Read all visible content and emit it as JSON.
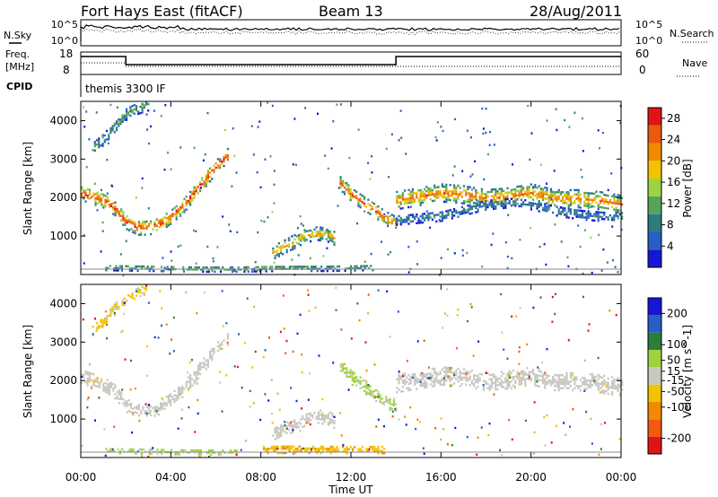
{
  "header": {
    "station": "Fort Hays East (fitACF)",
    "beam": "Beam 13",
    "date": "28/Aug/2011"
  },
  "status_panels": {
    "nsky_label": "N.Sky",
    "nsearch_label": "N.Search",
    "noise_ticks": [
      "10^5",
      "10^0"
    ],
    "freq_label_1": "Freq.",
    "freq_label_2": "[MHz]",
    "freq_ticks": [
      "18",
      "8"
    ],
    "nave_label": "Nave",
    "nave_ticks": [
      "60",
      "0"
    ],
    "cpid_label": "CPID",
    "cpid_text": "themis 3300 IF"
  },
  "colors": {
    "power": [
      "#1616d6",
      "#2a5ec7",
      "#2d7c7c",
      "#56a35a",
      "#9fd23f",
      "#f2c300",
      "#f08a00",
      "#e85a10",
      "#e01414"
    ],
    "velocity": [
      "#e01414",
      "#f05a10",
      "#f08a00",
      "#f2c300",
      "#c8c8c0",
      "#9fd23f",
      "#2d7c3a",
      "#2a5ec7",
      "#1616d6"
    ]
  },
  "chart_data": [
    {
      "type": "heatmap",
      "name_panel": "power",
      "ylabel": "Slant Range [km]",
      "xlabel": "",
      "ylim": [
        0,
        4500
      ],
      "yticks": [
        "1000",
        "2000",
        "3000",
        "4000"
      ],
      "colorbar": {
        "label": "Power [dB]",
        "ticks": [
          "4",
          "8",
          "12",
          "16",
          "20",
          "24",
          "28"
        ],
        "range": [
          0,
          30
        ]
      },
      "features": [
        {
          "t": [
            0.0,
            0.5,
            1.0,
            1.5,
            2.0,
            2.5,
            3.0,
            3.5,
            4.0,
            4.5,
            5.0,
            5.5,
            6.0,
            6.5
          ],
          "r": [
            2150,
            2050,
            1950,
            1750,
            1400,
            1250,
            1250,
            1350,
            1550,
            1800,
            2150,
            2500,
            2850,
            3150
          ],
          "thick": 380,
          "peak": 28
        },
        {
          "t": [
            0.5,
            1.0,
            1.5,
            2.0,
            2.5,
            3.0
          ],
          "r": [
            3300,
            3550,
            3900,
            4200,
            4350,
            4450
          ],
          "thick": 300,
          "peak": 12
        },
        {
          "t": [
            8.5,
            9.0,
            9.5,
            10.0,
            10.5,
            11.0,
            11.3
          ],
          "r": [
            600,
            750,
            900,
            1050,
            1100,
            1050,
            950
          ],
          "thick": 350,
          "peak": 20
        },
        {
          "t": [
            11.5,
            12.0,
            12.5,
            13.0,
            13.5,
            14.0
          ],
          "r": [
            2400,
            2100,
            1900,
            1700,
            1500,
            1350
          ],
          "thick": 350,
          "peak": 26
        },
        {
          "t": [
            14.0,
            15.0,
            16.0,
            17.0,
            18.0,
            19.0,
            20.0,
            21.0,
            22.0,
            23.0,
            24.0
          ],
          "r": [
            1950,
            2050,
            2150,
            2100,
            2000,
            2050,
            2150,
            2000,
            2000,
            1950,
            1850
          ],
          "thick": 450,
          "peak": 24
        },
        {
          "t": [
            14.0,
            15.0,
            16.0,
            17.0,
            18.0,
            19.0,
            20.0,
            21.0,
            22.0,
            23.0,
            24.0
          ],
          "r": [
            1450,
            1500,
            1550,
            1700,
            1850,
            1900,
            1850,
            1700,
            1600,
            1550,
            1500
          ],
          "thick": 260,
          "peak": 9
        },
        {
          "t": [
            1.0,
            3.0,
            5.0,
            7.0,
            9.0,
            11.0,
            13.0
          ],
          "r": [
            220,
            200,
            180,
            180,
            200,
            200,
            220
          ],
          "thick": 160,
          "peak": 14
        }
      ]
    },
    {
      "type": "heatmap",
      "name_panel": "velocity",
      "ylabel": "Slant Range [km]",
      "xlabel": "Time UT",
      "ylim": [
        0,
        4500
      ],
      "yticks": [
        "1000",
        "2000",
        "3000",
        "4000"
      ],
      "xticks": [
        "00:00",
        "04:00",
        "08:00",
        "12:00",
        "16:00",
        "20:00",
        "00:00"
      ],
      "xlim_hours": [
        0,
        24
      ],
      "colorbar": {
        "label": "Velocity [m s^-1]",
        "ticks": [
          "-200",
          "-100",
          "-50",
          "-15",
          "15",
          "50",
          "100",
          "200"
        ],
        "range": [
          -250,
          250
        ]
      },
      "features": [
        {
          "t": [
            0.0,
            0.5,
            1.0,
            1.5,
            2.0,
            2.5,
            3.0,
            3.5,
            4.0,
            4.5,
            5.0,
            5.5,
            6.0,
            6.5
          ],
          "r": [
            2150,
            2050,
            1950,
            1750,
            1400,
            1250,
            1250,
            1350,
            1550,
            1800,
            2150,
            2500,
            2850,
            3150
          ],
          "thick": 380,
          "vel": 0
        },
        {
          "t": [
            0.5,
            1.0,
            1.5,
            2.0,
            2.5,
            3.0
          ],
          "r": [
            3300,
            3550,
            3900,
            4200,
            4350,
            4450
          ],
          "thick": 300,
          "vel": -40
        },
        {
          "t": [
            8.5,
            9.0,
            9.5,
            10.0,
            10.5,
            11.0,
            11.3
          ],
          "r": [
            600,
            750,
            900,
            1050,
            1100,
            1050,
            950
          ],
          "thick": 350,
          "vel": 0
        },
        {
          "t": [
            11.5,
            12.0,
            12.5,
            13.0,
            13.5,
            14.0
          ],
          "r": [
            2400,
            2100,
            1900,
            1700,
            1500,
            1350
          ],
          "thick": 350,
          "vel": 30
        },
        {
          "t": [
            14.0,
            15.0,
            16.0,
            17.0,
            18.0,
            19.0,
            20.0,
            21.0,
            22.0,
            23.0,
            24.0
          ],
          "r": [
            1950,
            2050,
            2150,
            2100,
            2000,
            2050,
            2150,
            2000,
            2000,
            1950,
            1850
          ],
          "thick": 450,
          "vel": 0
        },
        {
          "t": [
            1.0,
            3.0,
            5.0,
            7.0
          ],
          "r": [
            220,
            200,
            180,
            180
          ],
          "thick": 160,
          "vel": 40
        },
        {
          "t": [
            8.0,
            10.0,
            12.0,
            13.5
          ],
          "r": [
            250,
            260,
            240,
            250
          ],
          "thick": 220,
          "vel": -70
        }
      ]
    }
  ]
}
